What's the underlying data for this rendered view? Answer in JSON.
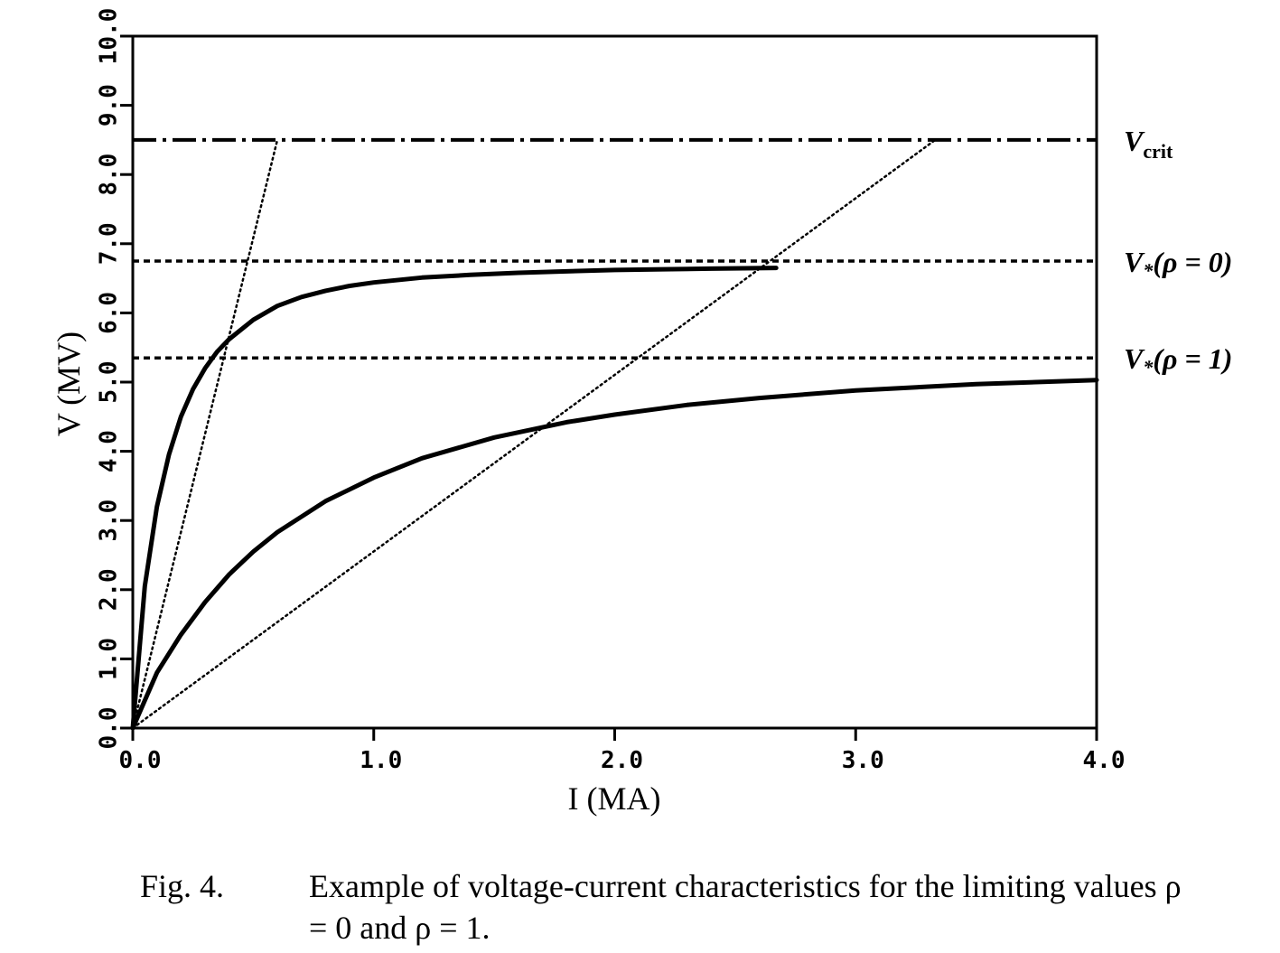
{
  "chart_data": {
    "type": "line",
    "xlabel": "I (MA)",
    "ylabel": "V (MV)",
    "xlim": [
      0,
      4
    ],
    "ylim": [
      0,
      10
    ],
    "x_ticks": [
      0,
      1,
      2,
      3,
      4
    ],
    "x_tick_labels": [
      "0.0",
      "1.0",
      "2.0",
      "3.0",
      "4.0"
    ],
    "y_ticks": [
      0,
      1,
      2,
      3,
      4,
      5,
      6,
      7,
      8,
      9,
      10
    ],
    "y_tick_labels": [
      "0.0",
      "1.0",
      "2.0",
      "3.0",
      "4.0",
      "5.0",
      "6.0",
      "7.0",
      "8.0",
      "9.0",
      "10.0"
    ],
    "grid": false,
    "series": [
      {
        "style": "solid",
        "x": [
          0,
          0.05,
          0.1,
          0.15,
          0.2,
          0.25,
          0.3,
          0.35,
          0.4,
          0.5,
          0.6,
          0.7,
          0.8,
          0.9,
          1.0,
          1.2,
          1.4,
          1.6,
          1.8,
          2.0,
          2.2,
          2.4,
          2.67
        ],
        "y": [
          0,
          2.05,
          3.2,
          3.95,
          4.5,
          4.9,
          5.2,
          5.44,
          5.62,
          5.9,
          6.1,
          6.23,
          6.32,
          6.39,
          6.44,
          6.51,
          6.55,
          6.58,
          6.6,
          6.62,
          6.63,
          6.64,
          6.65
        ]
      },
      {
        "style": "solid",
        "x": [
          0,
          0.1,
          0.2,
          0.3,
          0.4,
          0.5,
          0.6,
          0.8,
          1.0,
          1.2,
          1.5,
          1.8,
          2.0,
          2.3,
          2.6,
          3.0,
          3.5,
          4.0
        ],
        "y": [
          0,
          0.8,
          1.35,
          1.82,
          2.22,
          2.55,
          2.83,
          3.28,
          3.62,
          3.9,
          4.2,
          4.42,
          4.53,
          4.67,
          4.77,
          4.88,
          4.97,
          5.03
        ]
      },
      {
        "style": "dotted",
        "x": [
          0,
          0.6
        ],
        "y": [
          0,
          8.5
        ]
      },
      {
        "style": "dotted",
        "x": [
          0,
          3.33
        ],
        "y": [
          0,
          8.5
        ]
      }
    ],
    "reference_lines": [
      {
        "y": 8.5,
        "style": "dash-dot",
        "label_main": "V",
        "label_sub": "crit"
      },
      {
        "y": 6.75,
        "style": "dashed",
        "label_main": "V",
        "label_star": "*",
        "label_rest": "(ρ = 0)"
      },
      {
        "y": 5.35,
        "style": "dashed",
        "label_main": "V",
        "label_star": "*",
        "label_rest": "(ρ = 1)"
      }
    ]
  },
  "caption": {
    "label": "Fig. 4.",
    "text": "Example of voltage-current characteristics for the limiting values ρ = 0 and ρ = 1."
  }
}
